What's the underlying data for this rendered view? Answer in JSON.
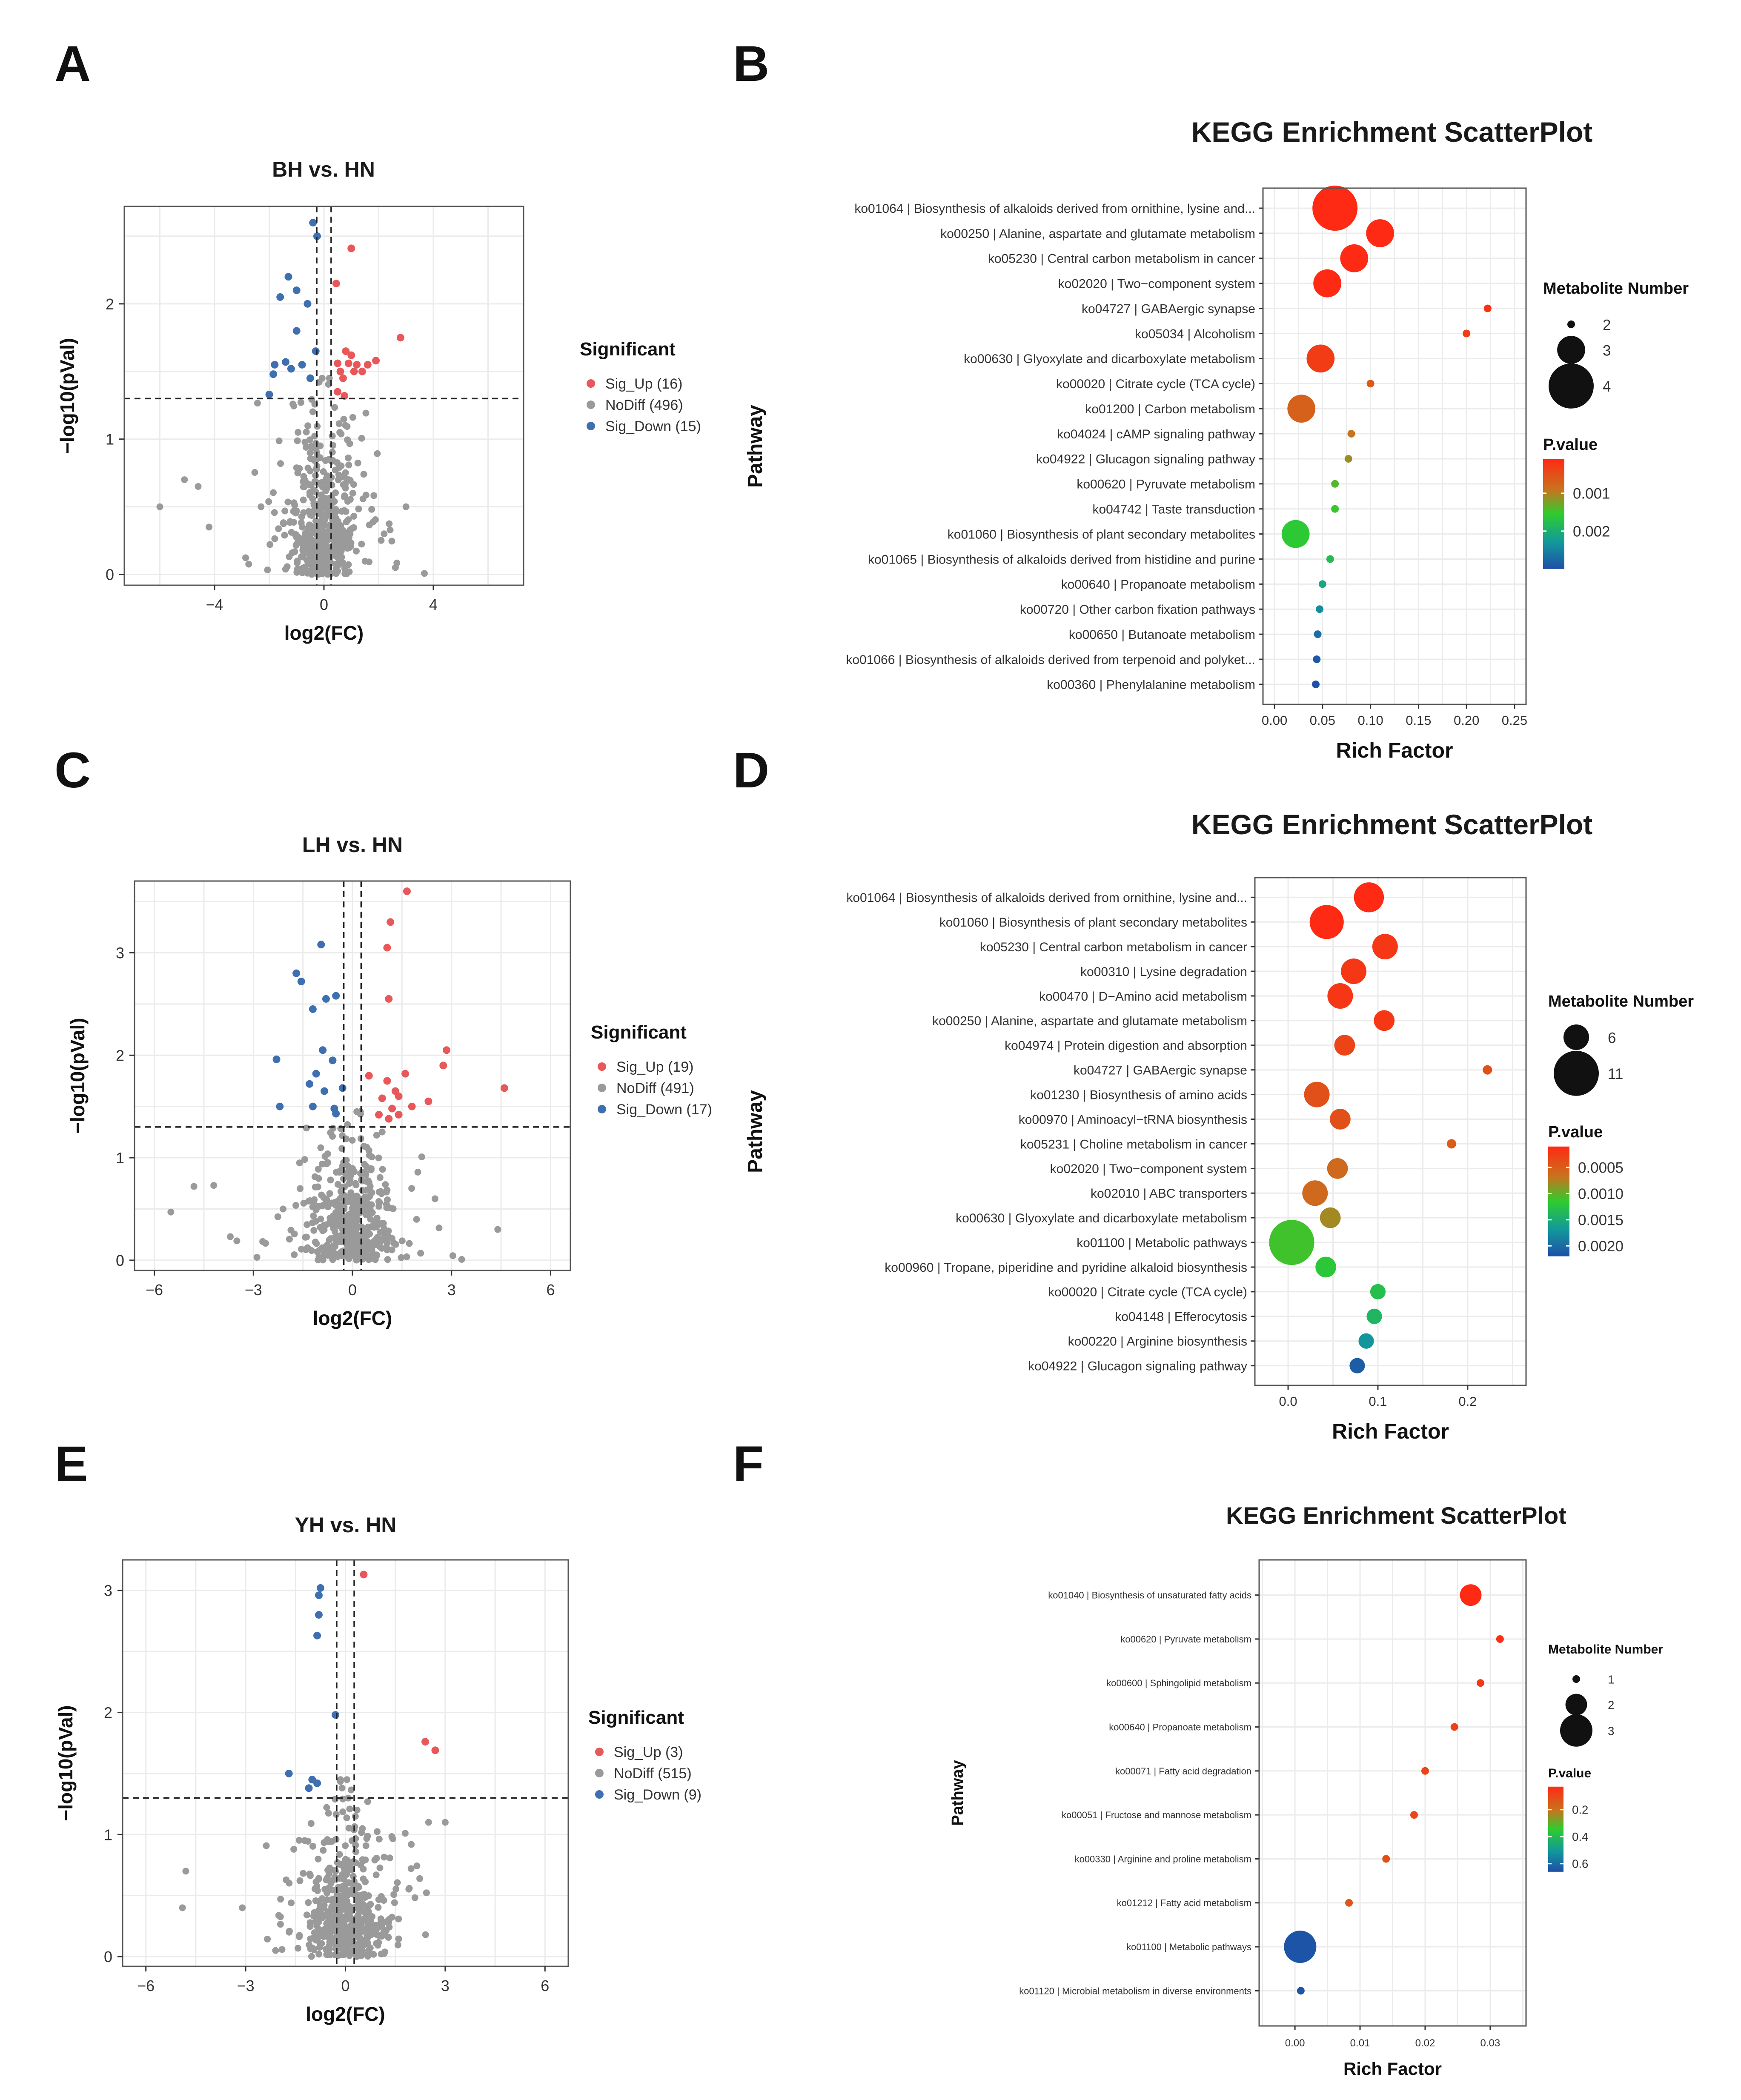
{
  "panel_labels": [
    "A",
    "B",
    "C",
    "D",
    "E",
    "F"
  ],
  "colors": {
    "up": "#E8585B",
    "nodiff": "#9A9A9A",
    "down": "#3E6FB0",
    "grid": "#EBEBEB",
    "frame": "#555555"
  },
  "chart_data": [
    {
      "id": "A",
      "type": "scatter",
      "kind": "volcano",
      "title": "BH vs. HN",
      "xlabel": "log2(FC)",
      "ylabel": "−log10(pVal)",
      "xlim": [
        -7.3,
        7.3
      ],
      "ylim": [
        -0.08,
        2.72
      ],
      "xticks": [
        -4,
        0,
        4
      ],
      "yticks": [
        0,
        1,
        2
      ],
      "fc_threshold": 0.263,
      "p_threshold": 1.3,
      "legend_title": "Significant",
      "legend": [
        "Sig_Up (16)",
        "NoDiff (496)",
        "Sig_Down (15)"
      ],
      "n_nodiff": 496,
      "sig_up": [
        [
          1,
          2.41
        ],
        [
          0.45,
          2.15
        ],
        [
          2.8,
          1.75
        ],
        [
          0.8,
          1.65
        ],
        [
          1.0,
          1.62
        ],
        [
          0.5,
          1.56
        ],
        [
          0.9,
          1.56
        ],
        [
          1.2,
          1.55
        ],
        [
          0.6,
          1.5
        ],
        [
          1.1,
          1.5
        ],
        [
          1.4,
          1.5
        ],
        [
          1.9,
          1.58
        ],
        [
          1.6,
          1.55
        ],
        [
          0.7,
          1.45
        ],
        [
          0.5,
          1.35
        ],
        [
          0.75,
          1.32
        ]
      ],
      "sig_down": [
        [
          -0.4,
          2.6
        ],
        [
          -0.25,
          2.5
        ],
        [
          -1.3,
          2.2
        ],
        [
          -1.0,
          2.1
        ],
        [
          -1.6,
          2.05
        ],
        [
          -0.6,
          2.0
        ],
        [
          -1.0,
          1.8
        ],
        [
          -0.3,
          1.65
        ],
        [
          -1.4,
          1.57
        ],
        [
          -0.8,
          1.55
        ],
        [
          -1.8,
          1.55
        ],
        [
          -1.2,
          1.52
        ],
        [
          -1.85,
          1.48
        ],
        [
          -0.5,
          1.45
        ],
        [
          -2.0,
          1.33
        ]
      ],
      "nodiff_outliers": [
        [
          -6,
          0.5
        ],
        [
          -5.1,
          0.7
        ],
        [
          -4.6,
          0.65
        ],
        [
          -4.2,
          0.35
        ],
        [
          2.2,
          0.3
        ],
        [
          -2.3,
          0.5
        ],
        [
          3.0,
          0.5
        ]
      ]
    },
    {
      "id": "B",
      "type": "scatter",
      "kind": "enrichment",
      "title": "KEGG Enrichment ScatterPlot",
      "xlabel": "Rich Factor",
      "ylabel": "Pathway",
      "xlim": [
        -0.012,
        0.262
      ],
      "xticks": [
        0,
        0.05,
        0.1,
        0.15,
        0.2,
        0.25
      ],
      "xtick_labels": [
        "0.00",
        "0.05",
        "0.10",
        "0.15",
        "0.20",
        "0.25"
      ],
      "pathways": [
        "ko01064 | Biosynthesis of alkaloids derived from ornithine, lysine and...",
        "ko00250 | Alanine, aspartate and glutamate metabolism",
        "ko05230 | Central carbon metabolism in cancer",
        "ko02020 | Two−component system",
        "ko04727 | GABAergic synapse",
        "ko05034 | Alcoholism",
        "ko00630 | Glyoxylate and dicarboxylate metabolism",
        "ko00020 | Citrate cycle (TCA cycle)",
        "ko01200 | Carbon metabolism",
        "ko04024 | cAMP signaling pathway",
        "ko04922 | Glucagon signaling pathway",
        "ko00620 | Pyruvate metabolism",
        "ko04742 | Taste transduction",
        "ko01060 | Biosynthesis of plant secondary metabolites",
        "ko01065 | Biosynthesis of alkaloids derived from histidine and purine",
        "ko00640 | Propanoate metabolism",
        "ko00720 | Other carbon fixation pathways",
        "ko00650 | Butanoate metabolism",
        "ko01066 | Biosynthesis of alkaloids derived from terpenoid and polyket...",
        "ko00360 | Phenylalanine metabolism"
      ],
      "rich_factor": [
        0.063,
        0.11,
        0.083,
        0.055,
        0.222,
        0.2,
        0.048,
        0.1,
        0.028,
        0.08,
        0.077,
        0.063,
        0.063,
        0.022,
        0.058,
        0.05,
        0.047,
        0.045,
        0.044,
        0.043
      ],
      "metabolite_number": [
        4,
        3,
        3,
        3,
        2,
        2,
        3,
        2,
        3,
        2,
        2,
        2,
        2,
        3,
        2,
        2,
        2,
        2,
        2,
        2
      ],
      "p_value": [
        0.0001,
        0.0001,
        0.0001,
        0.0001,
        0.0002,
        0.0003,
        0.0003,
        0.0006,
        0.0007,
        0.0009,
        0.0011,
        0.0014,
        0.0015,
        0.0016,
        0.0018,
        0.0021,
        0.0024,
        0.0027,
        0.0029,
        0.003
      ],
      "pval_range": [
        0.0001,
        0.003
      ],
      "size_legend_title": "Metabolite Number",
      "size_legend": [
        {
          "value": 2,
          "label": "2"
        },
        {
          "value": 3,
          "label": "3"
        },
        {
          "value": 4,
          "label": "4"
        }
      ],
      "size_domain": [
        2,
        4
      ],
      "size_range": [
        9,
        53
      ],
      "color_legend_title": "P.value",
      "color_legend": [
        {
          "value": 0.001,
          "label": "0.001"
        },
        {
          "value": 0.002,
          "label": "0.002"
        }
      ]
    },
    {
      "id": "C",
      "type": "scatter",
      "kind": "volcano",
      "title": "LH vs. HN",
      "xlabel": "log2(FC)",
      "ylabel": "−log10(pVal)",
      "xlim": [
        -6.6,
        6.6
      ],
      "ylim": [
        -0.1,
        3.7
      ],
      "xticks": [
        -6,
        -3,
        0,
        3,
        6
      ],
      "yticks": [
        0,
        1,
        2,
        3
      ],
      "fc_threshold": 0.263,
      "p_threshold": 1.3,
      "legend_title": "Significant",
      "legend": [
        "Sig_Up (19)",
        "NoDiff (491)",
        "Sig_Down (17)"
      ],
      "n_nodiff": 491,
      "sig_up": [
        [
          1.65,
          3.6
        ],
        [
          1.15,
          3.3
        ],
        [
          1.05,
          3.05
        ],
        [
          1.1,
          2.55
        ],
        [
          2.85,
          2.05
        ],
        [
          2.75,
          1.9
        ],
        [
          1.6,
          1.82
        ],
        [
          0.5,
          1.8
        ],
        [
          1.05,
          1.75
        ],
        [
          4.6,
          1.68
        ],
        [
          1.3,
          1.65
        ],
        [
          1.4,
          1.6
        ],
        [
          0.9,
          1.58
        ],
        [
          1.8,
          1.5
        ],
        [
          2.3,
          1.55
        ],
        [
          1.2,
          1.48
        ],
        [
          1.4,
          1.42
        ],
        [
          0.8,
          1.42
        ],
        [
          1.1,
          1.38
        ]
      ],
      "sig_down": [
        [
          -0.95,
          3.08
        ],
        [
          -1.7,
          2.8
        ],
        [
          -1.55,
          2.72
        ],
        [
          -0.5,
          2.58
        ],
        [
          -0.8,
          2.55
        ],
        [
          -1.2,
          2.45
        ],
        [
          -0.9,
          2.05
        ],
        [
          -2.3,
          1.96
        ],
        [
          -0.6,
          1.95
        ],
        [
          -1.1,
          1.82
        ],
        [
          -1.3,
          1.72
        ],
        [
          -0.3,
          1.68
        ],
        [
          -0.85,
          1.65
        ],
        [
          -2.2,
          1.5
        ],
        [
          -1.2,
          1.5
        ],
        [
          -0.55,
          1.48
        ],
        [
          -0.5,
          1.43
        ]
      ],
      "nodiff_outliers": [
        [
          -5.5,
          0.47
        ],
        [
          -4.8,
          0.72
        ],
        [
          -4.2,
          0.73
        ],
        [
          -3.7,
          0.23
        ],
        [
          4.4,
          0.3
        ],
        [
          -2.1,
          0.5
        ],
        [
          2.5,
          0.6
        ]
      ]
    },
    {
      "id": "D",
      "type": "scatter",
      "kind": "enrichment",
      "title": "KEGG Enrichment ScatterPlot",
      "xlabel": "Rich Factor",
      "ylabel": "Pathway",
      "xlim": [
        -0.037,
        0.265
      ],
      "xticks": [
        0,
        0.1,
        0.2
      ],
      "xtick_labels": [
        "0.0",
        "0.1",
        "0.2"
      ],
      "pathways": [
        "ko01064 | Biosynthesis of alkaloids derived from ornithine, lysine and...",
        "ko01060 | Biosynthesis of plant secondary metabolites",
        "ko05230 | Central carbon metabolism in cancer",
        "ko00310 | Lysine degradation",
        "ko00470 | D−Amino acid metabolism",
        "ko00250 | Alanine, aspartate and glutamate metabolism",
        "ko04974 | Protein digestion and absorption",
        "ko04727 | GABAergic synapse",
        "ko01230 | Biosynthesis of amino acids",
        "ko00970 | Aminoacyl−tRNA biosynthesis",
        "ko05231 | Choline metabolism in cancer",
        "ko02020 | Two−component system",
        "ko02010 | ABC transporters",
        "ko00630 | Glyoxylate and dicarboxylate metabolism",
        "ko01100 | Metabolic pathways",
        "ko00960 | Tropane, piperidine and pyridine alkaloid biosynthesis",
        "ko00020 | Citrate cycle (TCA cycle)",
        "ko04148 | Efferocytosis",
        "ko00220 | Arginine biosynthesis",
        "ko04922 | Glucagon signaling pathway"
      ],
      "rich_factor": [
        0.09,
        0.043,
        0.108,
        0.073,
        0.058,
        0.107,
        0.063,
        0.222,
        0.032,
        0.058,
        0.182,
        0.055,
        0.03,
        0.047,
        0.004,
        0.042,
        0.1,
        0.096,
        0.087,
        0.077
      ],
      "metabolite_number": [
        7,
        8,
        6,
        6,
        6,
        5,
        5,
        3,
        6,
        5,
        3,
        5,
        6,
        5,
        11,
        5,
        4,
        4,
        4,
        4
      ],
      "p_value": [
        0.0001,
        0.0001,
        0.0002,
        0.0002,
        0.0002,
        0.0002,
        0.0003,
        0.0004,
        0.0004,
        0.0004,
        0.0005,
        0.0006,
        0.0006,
        0.0008,
        0.0011,
        0.0012,
        0.0013,
        0.0014,
        0.0017,
        0.0021
      ],
      "pval_range": [
        0.0001,
        0.0022
      ],
      "size_legend_title": "Metabolite Number",
      "size_legend": [
        {
          "value": 6,
          "label": "6"
        },
        {
          "value": 11,
          "label": "11"
        }
      ],
      "size_domain": [
        3,
        11
      ],
      "size_range": [
        11,
        53
      ],
      "color_legend_title": "P.value",
      "color_legend": [
        {
          "value": 0.0005,
          "label": "0.0005"
        },
        {
          "value": 0.001,
          "label": "0.0010"
        },
        {
          "value": 0.0015,
          "label": "0.0015"
        },
        {
          "value": 0.002,
          "label": "0.0020"
        }
      ]
    },
    {
      "id": "E",
      "type": "scatter",
      "kind": "volcano",
      "title": "YH vs. HN",
      "xlabel": "log2(FC)",
      "ylabel": "−log10(pVal)",
      "xlim": [
        -6.7,
        6.7
      ],
      "ylim": [
        -0.08,
        3.25
      ],
      "xticks": [
        -6,
        -3,
        0,
        3,
        6
      ],
      "yticks": [
        0,
        1,
        2,
        3
      ],
      "fc_threshold": 0.263,
      "p_threshold": 1.3,
      "legend_title": "Significant",
      "legend": [
        "Sig_Up (3)",
        "NoDiff (515)",
        "Sig_Down (9)"
      ],
      "n_nodiff": 515,
      "sig_up": [
        [
          0.55,
          3.13
        ],
        [
          2.4,
          1.76
        ],
        [
          2.7,
          1.69
        ]
      ],
      "sig_down": [
        [
          -0.75,
          3.02
        ],
        [
          -0.8,
          2.96
        ],
        [
          -0.8,
          2.8
        ],
        [
          -0.85,
          2.63
        ],
        [
          -0.3,
          1.98
        ],
        [
          -1.7,
          1.5
        ],
        [
          -1.0,
          1.45
        ],
        [
          -0.85,
          1.42
        ],
        [
          -1.1,
          1.38
        ]
      ],
      "nodiff_outliers": [
        [
          -4.8,
          0.7
        ],
        [
          -4.9,
          0.4
        ],
        [
          -3.1,
          0.4
        ],
        [
          -2.1,
          0.05
        ],
        [
          3.0,
          1.1
        ],
        [
          2.5,
          1.1
        ]
      ]
    },
    {
      "id": "F",
      "type": "scatter",
      "kind": "enrichment",
      "title": "KEGG Enrichment ScatterPlot",
      "xlabel": "Rich Factor",
      "ylabel": "Pathway",
      "xlim": [
        -0.0055,
        0.0355
      ],
      "xticks": [
        0,
        0.01,
        0.02,
        0.03
      ],
      "xtick_labels": [
        "0.00",
        "0.01",
        "0.02",
        "0.03"
      ],
      "pathways": [
        "ko01040 | Biosynthesis of unsaturated fatty acids",
        "ko00620 | Pyruvate metabolism",
        "ko00600 | Sphingolipid metabolism",
        "ko00640 | Propanoate metabolism",
        "ko00071 | Fatty acid degradation",
        "ko00051 | Fructose and mannose metabolism",
        "ko00330 | Arginine and proline metabolism",
        "ko01212 | Fatty acid metabolism",
        "ko01100 | Metabolic pathways",
        "ko01120 | Microbial metabolism in diverse environments"
      ],
      "rich_factor": [
        0.027,
        0.0315,
        0.0285,
        0.0245,
        0.02,
        0.0183,
        0.014,
        0.0083,
        0.0008,
        0.0009
      ],
      "metabolite_number": [
        2,
        1,
        1,
        1,
        1,
        1,
        1,
        1,
        3,
        1
      ],
      "p_value": [
        0.03,
        0.04,
        0.06,
        0.08,
        0.09,
        0.1,
        0.12,
        0.14,
        0.65,
        0.65
      ],
      "pval_range": [
        0.03,
        0.66
      ],
      "size_legend_title": "Metabolite Number",
      "size_legend": [
        {
          "value": 1,
          "label": "1"
        },
        {
          "value": 2,
          "label": "2"
        },
        {
          "value": 3,
          "label": "3"
        }
      ],
      "size_domain": [
        1,
        3
      ],
      "size_range": [
        9,
        38
      ],
      "color_legend_title": "P.value",
      "color_legend": [
        {
          "value": 0.2,
          "label": "0.2"
        },
        {
          "value": 0.4,
          "label": "0.4"
        },
        {
          "value": 0.6,
          "label": "0.6"
        }
      ]
    }
  ]
}
